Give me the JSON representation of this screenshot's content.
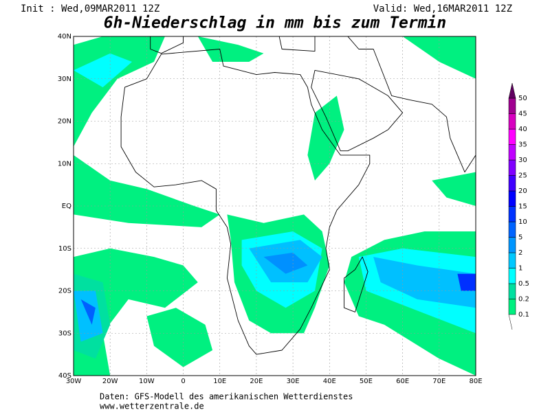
{
  "header": {
    "init": "Init : Wed,09MAR2011 12Z",
    "valid": "Valid: Wed,16MAR2011 12Z",
    "title": "6h-Niederschlag in mm bis zum Termin"
  },
  "map": {
    "lon_labels": [
      "30W",
      "20W",
      "10W",
      "0",
      "10E",
      "20E",
      "30E",
      "40E",
      "50E",
      "60E",
      "70E",
      "80E"
    ],
    "lat_labels": [
      "40N",
      "30N",
      "20N",
      "10N",
      "EQ",
      "10S",
      "20S",
      "30S",
      "40S"
    ]
  },
  "colorbar": {
    "labels": [
      "0.1",
      "0.2",
      "0.5",
      "1",
      "2",
      "5",
      "10",
      "15",
      "20",
      "25",
      "30",
      "35",
      "40",
      "45",
      "50"
    ]
  },
  "footer": {
    "source": "Daten: GFS-Modell des amerikanischen Wetterdienstes",
    "url": "www.wetterzentrale.de"
  }
}
